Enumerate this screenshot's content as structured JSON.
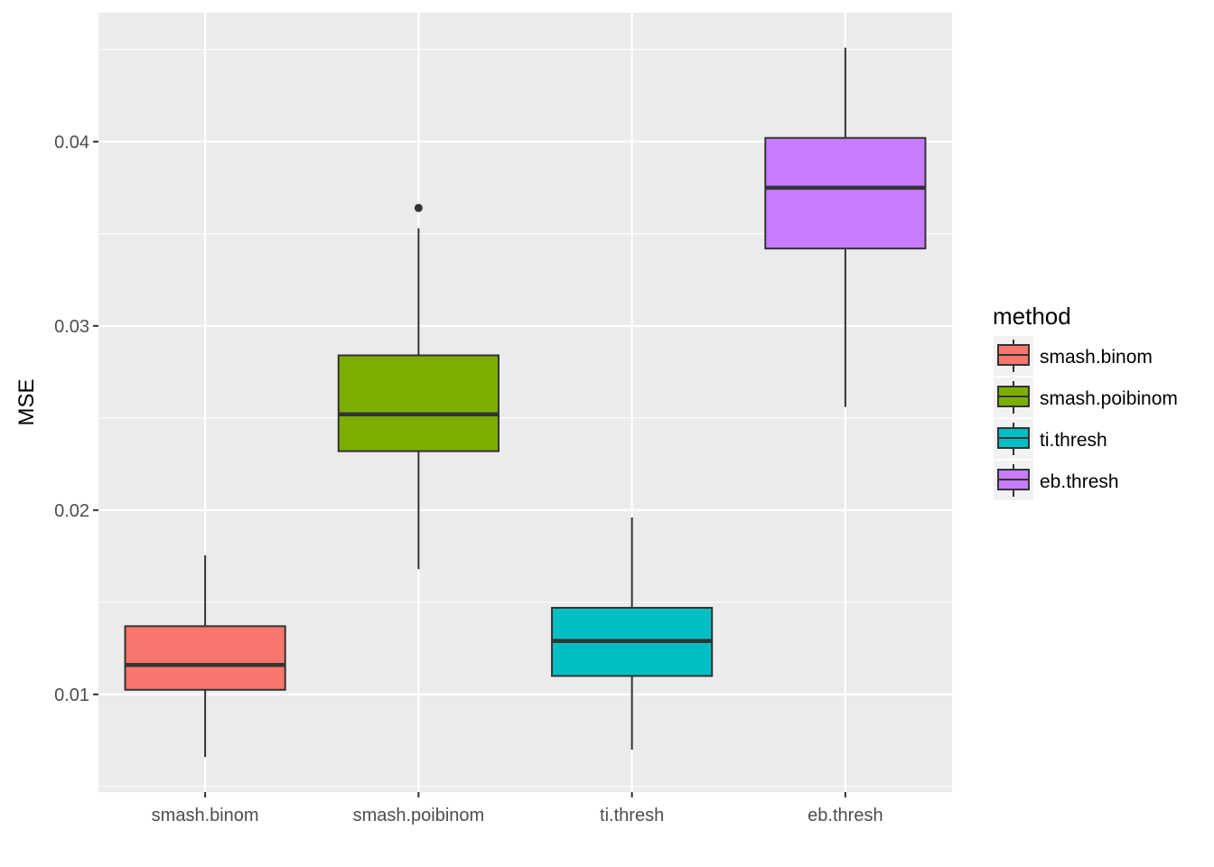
{
  "chart_data": {
    "type": "boxplot",
    "title": "",
    "xlabel": "",
    "ylabel": "MSE",
    "ylim": [
      0.0047,
      0.047
    ],
    "y_ticks": [
      0.01,
      0.02,
      0.03,
      0.04
    ],
    "y_tick_labels": [
      "0.01",
      "0.02",
      "0.03",
      "0.04"
    ],
    "y_minor_ticks": [
      0.005,
      0.015,
      0.025,
      0.035,
      0.045
    ],
    "grid": true,
    "categories": [
      "smash.binom",
      "smash.poibinom",
      "ti.thresh",
      "eb.thresh"
    ],
    "series": [
      {
        "name": "smash.binom",
        "color": "#F8766D",
        "whisker_low": 0.0066,
        "q1": 0.01025,
        "median": 0.0116,
        "q3": 0.0137,
        "whisker_high": 0.01755,
        "outliers": []
      },
      {
        "name": "smash.poibinom",
        "color": "#7CAE00",
        "whisker_low": 0.0168,
        "q1": 0.0232,
        "median": 0.0252,
        "q3": 0.0284,
        "whisker_high": 0.0353,
        "outliers": [
          0.0364
        ]
      },
      {
        "name": "ti.thresh",
        "color": "#00BFC4",
        "whisker_low": 0.007,
        "q1": 0.011,
        "median": 0.0129,
        "q3": 0.0147,
        "whisker_high": 0.0196,
        "outliers": []
      },
      {
        "name": "eb.thresh",
        "color": "#C77CFF",
        "whisker_low": 0.0256,
        "q1": 0.0342,
        "median": 0.0375,
        "q3": 0.0402,
        "whisker_high": 0.0451,
        "outliers": []
      }
    ],
    "legend": {
      "title": "method",
      "position": "right",
      "entries": [
        "smash.binom",
        "smash.poibinom",
        "ti.thresh",
        "eb.thresh"
      ]
    }
  },
  "colors": {
    "panel_background": "#EBEBEB",
    "grid": "#FFFFFF",
    "box_outline": "#333333",
    "legend_key_background": "#F2F2F2"
  }
}
